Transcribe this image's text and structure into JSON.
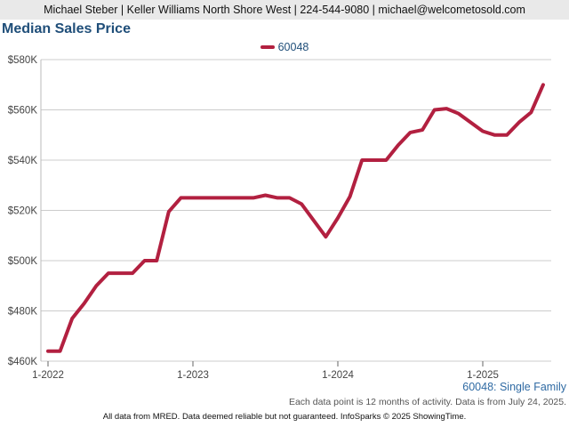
{
  "header": {
    "contact": "Michael Steber | Keller Williams North Shore West | 224-544-9080 | michael@welcometosold.com"
  },
  "chart_title": "Median Sales Price",
  "series_label": "60048",
  "subtitle_right": "60048: Single Family",
  "note": "Each data point is 12 months of activity. Data is from July 24, 2025.",
  "footer": "All data from MRED. Data deemed reliable but not guaranteed. InfoSparks © 2025 ShowingTime.",
  "colors": {
    "line": "#b22040",
    "title": "#1f4e79",
    "grid": "#cccccc"
  },
  "chart_data": {
    "type": "line",
    "title": "Median Sales Price",
    "x_tick_labels": [
      "1-2022",
      "1-2023",
      "1-2024",
      "1-2025"
    ],
    "y_tick_labels": [
      "$460K",
      "$480K",
      "$500K",
      "$520K",
      "$540K",
      "$560K",
      "$580K"
    ],
    "ylim": [
      460000,
      580000
    ],
    "grid": true,
    "legend_position": "top-center",
    "series": [
      {
        "name": "60048",
        "x": [
          "2022-01",
          "2022-02",
          "2022-03",
          "2022-04",
          "2022-05",
          "2022-06",
          "2022-07",
          "2022-08",
          "2022-09",
          "2022-10",
          "2022-11",
          "2022-12",
          "2023-01",
          "2023-02",
          "2023-03",
          "2023-04",
          "2023-05",
          "2023-06",
          "2023-07",
          "2023-08",
          "2023-09",
          "2023-10",
          "2023-11",
          "2023-12",
          "2024-01",
          "2024-02",
          "2024-03",
          "2024-04",
          "2024-05",
          "2024-06",
          "2024-07",
          "2024-08",
          "2024-09",
          "2024-10",
          "2024-11",
          "2024-12",
          "2025-01",
          "2025-02",
          "2025-03",
          "2025-04",
          "2025-05",
          "2025-06"
        ],
        "values": [
          464000,
          464000,
          477000,
          483000,
          490000,
          495000,
          495000,
          495000,
          500000,
          500000,
          519500,
          525000,
          525000,
          525000,
          525000,
          525000,
          525000,
          525000,
          526000,
          525000,
          525000,
          522500,
          516000,
          509500,
          517000,
          525500,
          540000,
          540000,
          540000,
          546000,
          551000,
          552000,
          560000,
          560500,
          558500,
          555000,
          551500,
          550000,
          550000,
          555000,
          559000,
          570000
        ]
      }
    ]
  }
}
